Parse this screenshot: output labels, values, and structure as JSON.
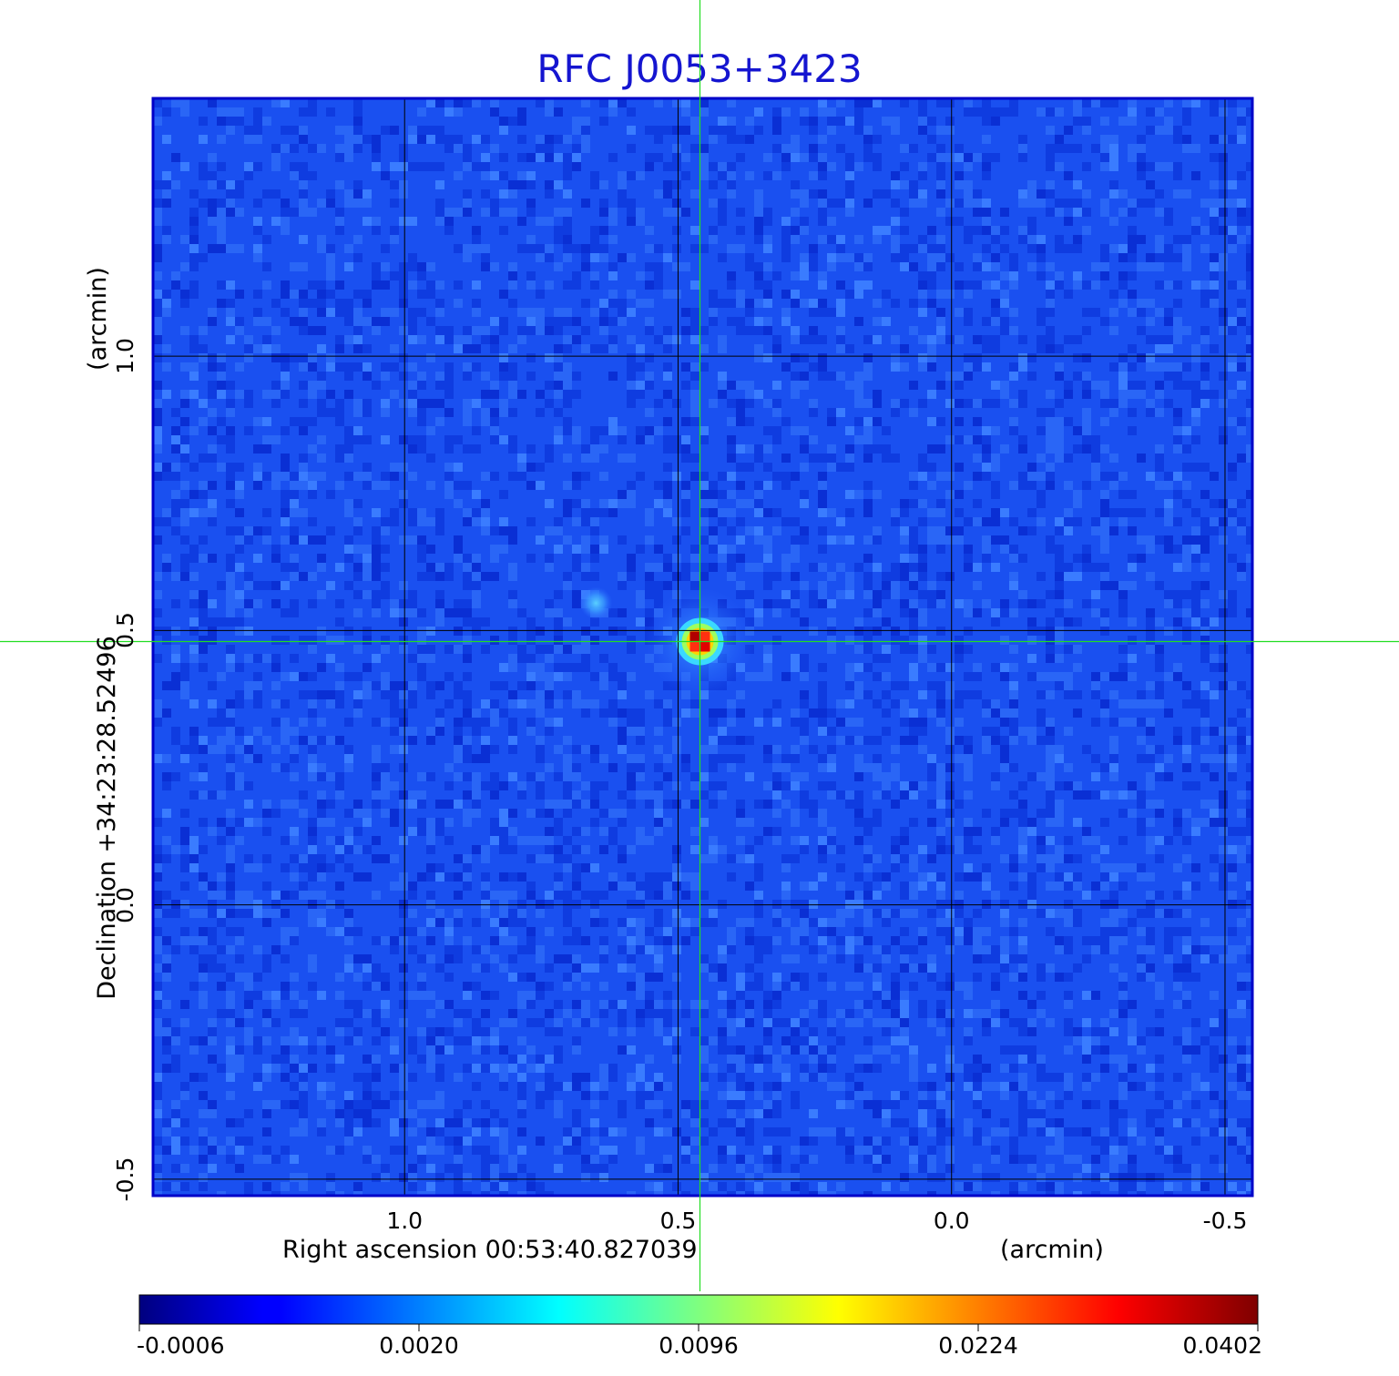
{
  "chart_data": {
    "type": "heatmap",
    "title": "RFC J0053+3423",
    "xlabel": "Right ascension  00:53:40.827039",
    "xunit": "(arcmin)",
    "ylabel": "Declination  +34:23:28.52496",
    "yunit": "(arcmin)",
    "x_axis_reversed": true,
    "xlim": [
      1.46,
      -0.55
    ],
    "ylim": [
      -0.53,
      1.47
    ],
    "x_ticks": [
      {
        "value": 1.0,
        "label": "1.0"
      },
      {
        "value": 0.5,
        "label": "0.5"
      },
      {
        "value": 0.0,
        "label": "0.0"
      },
      {
        "value": -0.5,
        "label": "-0.5"
      }
    ],
    "y_ticks": [
      {
        "value": 1.0,
        "label": "1.0"
      },
      {
        "value": 0.5,
        "label": "0.5"
      },
      {
        "value": 0.0,
        "label": "0.0"
      },
      {
        "value": -0.5,
        "label": "-0.5"
      }
    ],
    "grid": true,
    "colormap": "jet",
    "colorbar": {
      "placement": "bottom",
      "tick_labels": [
        "-0.0006",
        "0.0020",
        "0.0096",
        "0.0224",
        "0.0402"
      ]
    },
    "crosshair": {
      "x": 0.46,
      "y": 0.48,
      "color": "#22dd22"
    },
    "sources": [
      {
        "x": 0.46,
        "y": 0.48,
        "peak": 0.0402
      },
      {
        "x": 0.65,
        "y": 0.55,
        "peak": 0.0035
      }
    ]
  },
  "colors": {
    "background_field": "#1a50f0",
    "title": "#1515d0",
    "grid": "#000000",
    "crosshair": "#22dd22",
    "frame": "#0000c8"
  }
}
